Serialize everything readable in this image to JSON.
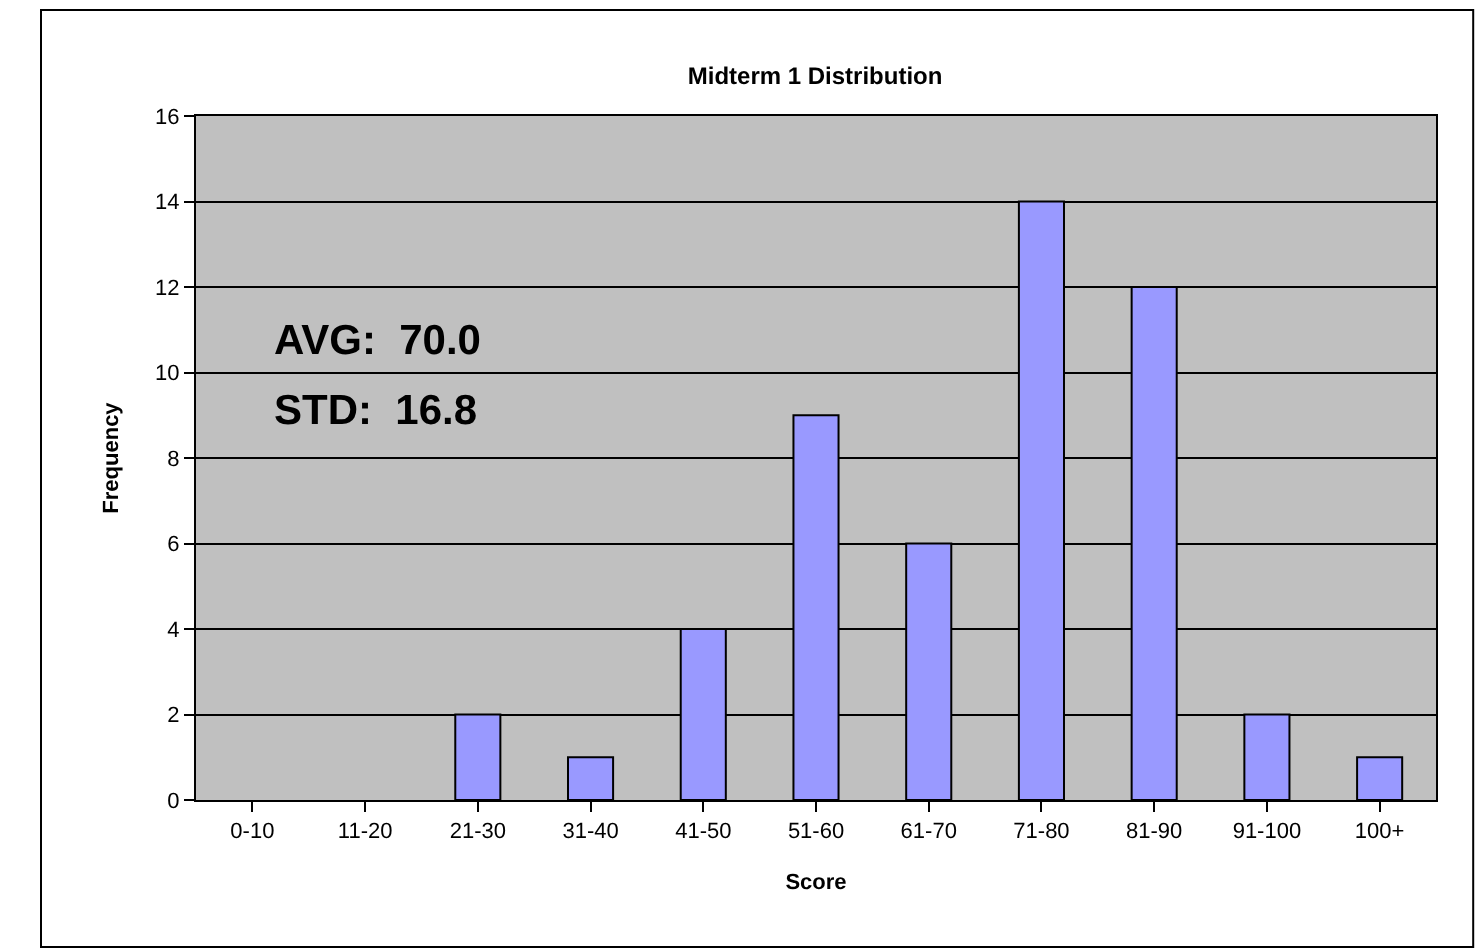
{
  "chart_data": {
    "type": "bar",
    "title": "Midterm 1 Distribution",
    "xlabel": "Score",
    "ylabel": "Frequency",
    "categories": [
      "0-10",
      "11-20",
      "21-30",
      "31-40",
      "41-50",
      "51-60",
      "61-70",
      "71-80",
      "81-90",
      "91-100",
      "100+"
    ],
    "values": [
      0,
      0,
      2,
      1,
      4,
      9,
      6,
      14,
      12,
      2,
      1
    ],
    "color": "#9999ff",
    "ylim": [
      0,
      16
    ],
    "yticks": [
      0,
      2,
      4,
      6,
      8,
      10,
      12,
      14,
      16
    ],
    "grid": "y",
    "annotations": [
      "AVG:  70.0",
      "STD:  16.8"
    ]
  }
}
